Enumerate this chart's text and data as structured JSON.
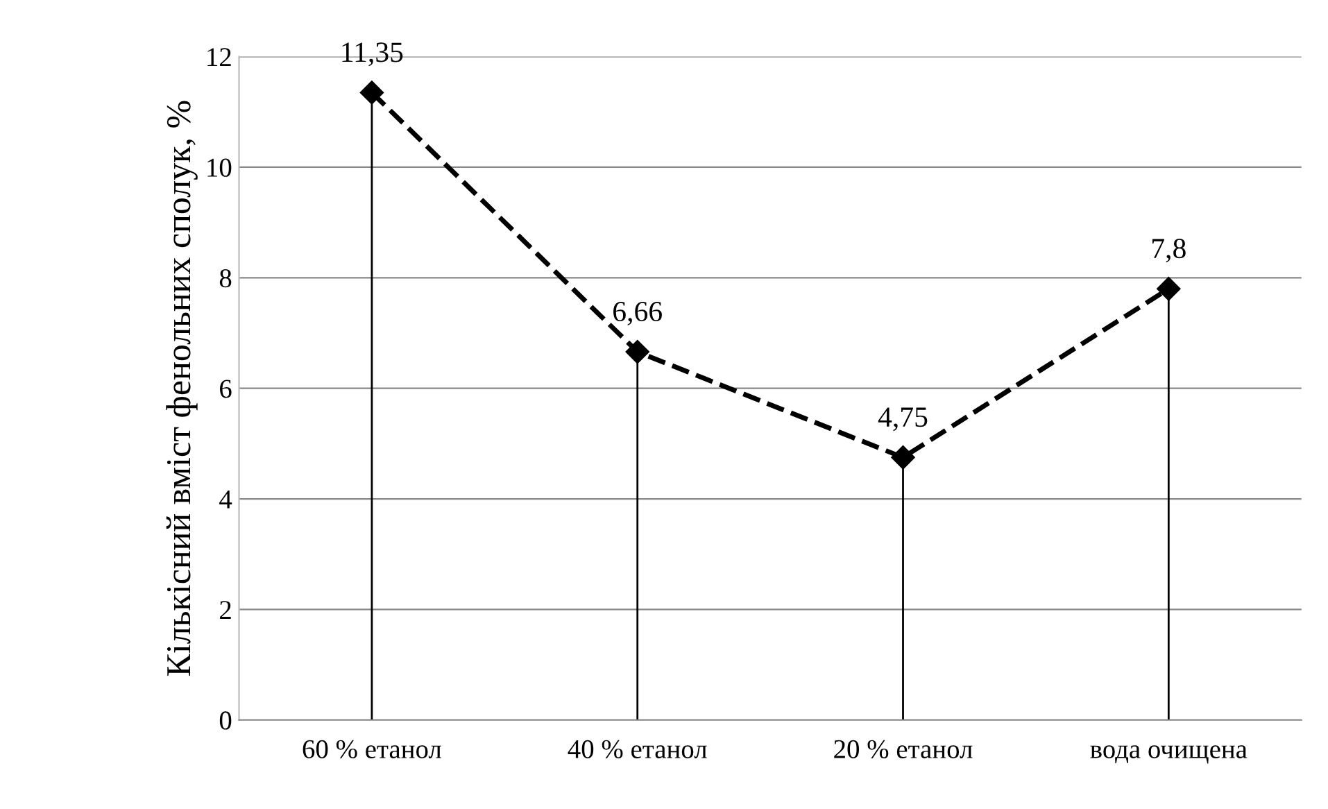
{
  "chart_data": {
    "type": "line",
    "ylabel": "Кількісний вміст фенольних сполук, %",
    "categories": [
      "60 % етанол",
      "40 % етанол",
      "20 % етанол",
      "вода очищена"
    ],
    "series": [
      {
        "type": "lollipop",
        "color": "#000000",
        "marker": "diamond",
        "values": [
          11.35,
          6.66,
          4.75,
          7.8
        ]
      },
      {
        "color": "#000000",
        "line_style": "dashed",
        "values": [
          11.35,
          6.66,
          4.75,
          7.8
        ],
        "value_labels": [
          "11,35",
          "6,66",
          "4,75",
          "7,8"
        ]
      }
    ],
    "ylim": [
      0,
      12
    ],
    "yticks": [
      0,
      2,
      4,
      6,
      8,
      10,
      12
    ],
    "grid": "y"
  }
}
